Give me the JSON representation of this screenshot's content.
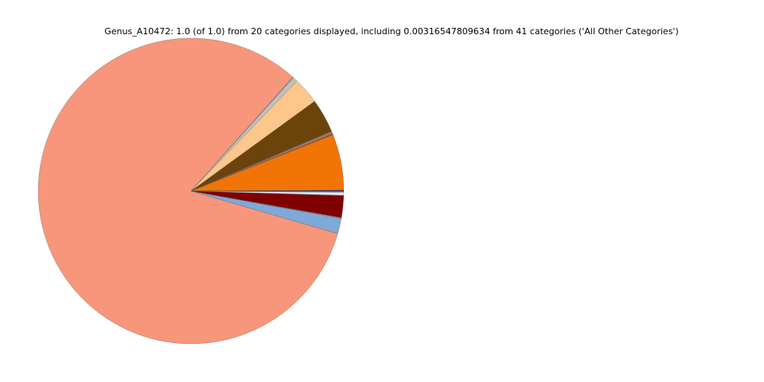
{
  "chart_data": {
    "type": "pie",
    "title": "Genus_A10472: 1.0 (of 1.0) from 20 categories displayed, including 0.00316547809634 from 41 categories ('All Other Categories')",
    "values": [
      0.001,
      0.059,
      0.0015,
      0.0015,
      0.001,
      0.036,
      0.028,
      0.005,
      0.001,
      0.821,
      0.016,
      0.001,
      0.023,
      0.0005,
      0.00316547809634,
      0.0003,
      0.0003,
      0.0003,
      0.0003,
      0.0001
    ],
    "colors": [
      "#1c1c9c",
      "#f27405",
      "#a0522d",
      "#c08060",
      "#808080",
      "#6b430b",
      "#fdc68a",
      "#c0c0c0",
      "#999999",
      "#f7967a",
      "#7fa9d8",
      "#9999cc",
      "#800000",
      "#555555",
      "#e6e6fa",
      "#ffffff",
      "#dddddd",
      "#b0b0d0",
      "#c8a080",
      "#404040"
    ]
  }
}
